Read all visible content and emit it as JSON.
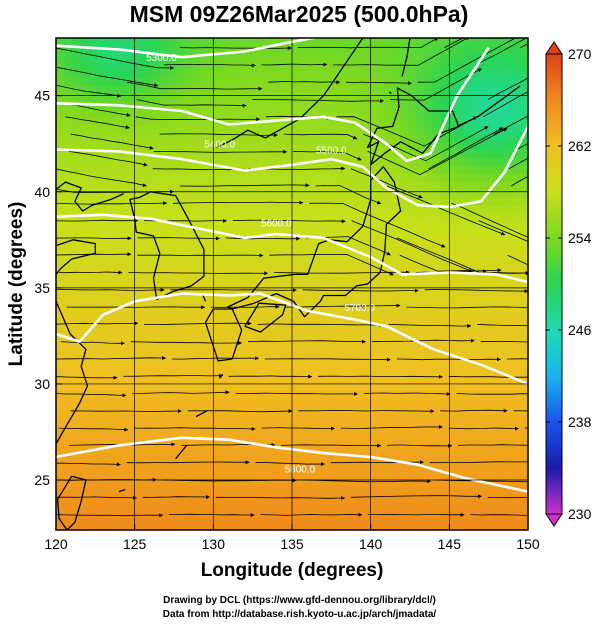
{
  "title": "MSM 09Z26Mar2025 (500.0hPa)",
  "map": {
    "xlabel": "Longitude (degrees)",
    "ylabel": "Latitude  (degrees)",
    "lon_range": [
      120,
      150
    ],
    "lat_range": [
      22.4,
      48
    ],
    "lon_ticks": [
      "120",
      "125",
      "130",
      "135",
      "140",
      "145",
      "150"
    ],
    "lat_ticks": [
      "25",
      "30",
      "35",
      "40",
      "45"
    ],
    "grid": true,
    "contours": [
      {
        "label": "5300.0",
        "label_lon": 126.7,
        "label_lat": 46.8
      },
      {
        "label": "5400.0",
        "label_lon": 130.4,
        "label_lat": 42.3
      },
      {
        "label": "5500.0",
        "label_lon": 137.5,
        "label_lat": 42.0
      },
      {
        "label": "5600.0",
        "label_lon": 134.0,
        "label_lat": 38.2
      },
      {
        "label": "5700.0",
        "label_lon": 139.3,
        "label_lat": 33.8
      },
      {
        "label": "5800.0",
        "label_lon": 135.5,
        "label_lat": 25.4
      }
    ]
  },
  "colorbar": {
    "ticks": [
      "270",
      "262",
      "254",
      "246",
      "238",
      "230"
    ],
    "min": 230,
    "max": 270,
    "colors": [
      "#cc33cc",
      "#1a1aaa",
      "#1a55ee",
      "#19b4ee",
      "#20dcb0",
      "#2ad452",
      "#7dd91f",
      "#c8e019",
      "#f0c020",
      "#f08a1a",
      "#e0401a"
    ]
  },
  "credits": {
    "line1": "Drawing by DCL (https://www.gfd-dennou.org/library/dcl/)",
    "line2": "Data from http://database.rish.kyoto-u.ac.jp/arch/jmadata/"
  }
}
